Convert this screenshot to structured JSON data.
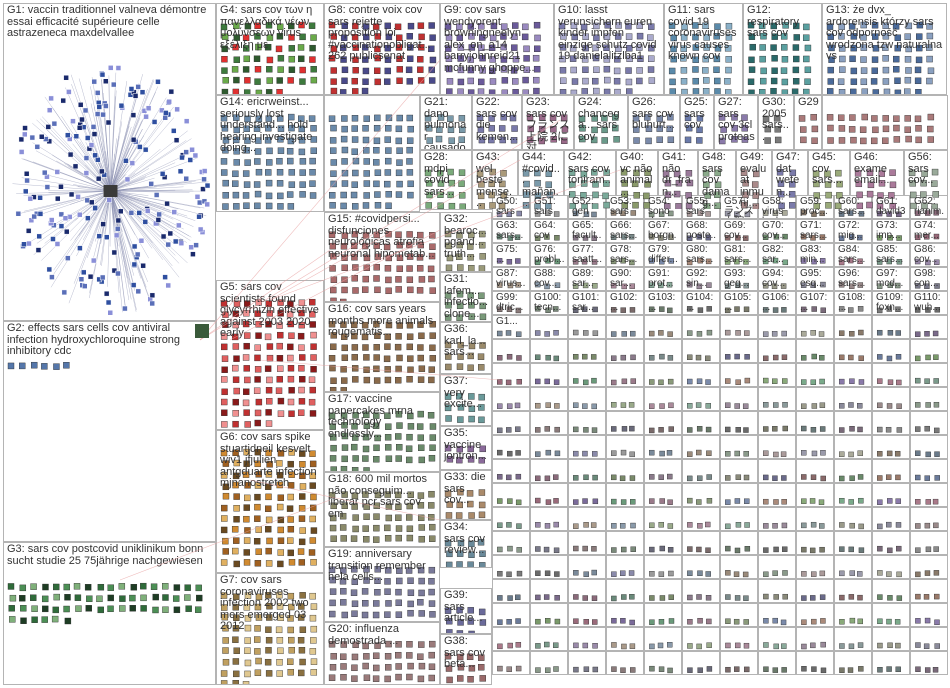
{
  "graph": {
    "background": "#ffffff",
    "edge_color": "#e8a0a0",
    "node_border": "#1a2a6c",
    "groups": [
      {
        "id": "G1",
        "label": "G1: vaccin traditionnel valneva démontre essai efficacité supérieure celle astrazeneca maxdelvallee",
        "palette": [
          "#1a2a6c",
          "#2f4fa0",
          "#5a6fb8",
          "#8a8fd8"
        ]
      },
      {
        "id": "G2",
        "label": "G2: effects sars cells cov antiviral infection hydroxychloroquine strong inhibitory cdc",
        "palette": [
          "#5577aa"
        ]
      },
      {
        "id": "G3",
        "label": "G3: sars cov postcovid uniklinikum bonn sucht studie 25 75jährige nachgewiesen",
        "palette": [
          "#2f6b3a",
          "#4c8f55",
          "#7fb07a",
          "#1e3d24"
        ]
      },
      {
        "id": "G4",
        "label": "G4: sars cov των η πανελλαδικά νέων μολύνσεων virus εξέλιξη με",
        "palette": [
          "#3d7a3d",
          "#6aaa4a",
          "#2e5a2e",
          "#e03030"
        ]
      },
      {
        "id": "G5",
        "label": "G5: sars cov scientists found glycyrrhizin effective against 2003 2020 early",
        "palette": [
          "#c03030",
          "#e06060",
          "#8a1a1a",
          "#f09090"
        ]
      },
      {
        "id": "G6",
        "label": "G6: cov sars spike stuartjdneil kesvelt wiv1 jfjulien antgduarte infection mjnanostretch",
        "palette": [
          "#d08a30",
          "#a06020",
          "#e0b060",
          "#6a4a20"
        ]
      },
      {
        "id": "G7",
        "label": "G7: cov sars coronaviruses infection 2002 two mers emerged 03 2012",
        "palette": [
          "#c0a060",
          "#8a7040",
          "#e0c890"
        ]
      },
      {
        "id": "G8",
        "label": "G8: contre voix cov sars rejette proposition loi #vaccinationobligat... 262 publicsenat",
        "palette": [
          "#c03030",
          "#4a4a8a"
        ]
      },
      {
        "id": "G9",
        "label": "G9: cov sars wendyorent browningneelyn alex_on_a14 barryjohnreid21 mcfunny ghoppe...",
        "palette": [
          "#6a5a9a",
          "#9a8ac0"
        ]
      },
      {
        "id": "G10",
        "label": "G10: lasst verunsichern euren kinder impfen einzige schutz covid 19 danielalitzlba1",
        "palette": [
          "#7a7aaa",
          "#aaaacc"
        ]
      },
      {
        "id": "G11",
        "label": "G11: sars covid 19 coronaviruses virus causes known cov",
        "palette": [
          "#5a8aaa",
          "#8ab0c8"
        ]
      },
      {
        "id": "G12",
        "label": "G12: respiratory sars cov",
        "palette": [
          "#2a6a6a",
          "#5aa0a0"
        ]
      },
      {
        "id": "G13",
        "label": "G13: że dvx_ ardorensis którzy sars cov odporność wrodzona tzw naturalna vs",
        "palette": [
          "#4a6a9a",
          "#8aa0c0"
        ]
      },
      {
        "id": "G14",
        "label": "G14: ericrweinst... seriously lost understand... hold hearing investigate doing...",
        "palette": [
          "#6a8aaa"
        ]
      },
      {
        "id": "G15",
        "label": "G15: #covidpersi... disfunciones neurológicas atrofia neuronal hipometab...",
        "palette": [
          "#aa6a6a"
        ]
      },
      {
        "id": "G16",
        "label": "G16: cov sars years months more animals rougematis...",
        "palette": [
          "#8a6a4a"
        ]
      },
      {
        "id": "G17",
        "label": "G17: vaccine papercakes mrna technology endlessly...",
        "palette": [
          "#6a8a6a"
        ]
      },
      {
        "id": "G18",
        "label": "G18: 600 mil mortos não conseguim... liberar pcr sars cov em",
        "palette": [
          "#8a8a6a"
        ]
      },
      {
        "id": "G19",
        "label": "G19: anniversary transition remember hela cells...",
        "palette": [
          "#7a7a9a"
        ]
      },
      {
        "id": "G20",
        "label": "G20: influenza demostrada ...",
        "palette": [
          "#9a7a7a"
        ]
      },
      {
        "id": "G21",
        "label": "G21: dano pulmonar causado...",
        "palette": [
          "#7a9aaa"
        ]
      },
      {
        "id": "G22",
        "label": "G22: sars cov die kemen...",
        "palette": [
          "#7a7aaa"
        ]
      },
      {
        "id": "G23",
        "label": "G23: sars cov フランス 上院 2に対...",
        "palette": [
          "#9a6a8a"
        ]
      },
      {
        "id": "G24",
        "label": "G24: chancega... sars cov",
        "palette": [
          "#6a9a8a"
        ]
      },
      {
        "id": "G25",
        "label": "G25: sars cov",
        "palette": [
          "#6a7aaa"
        ]
      },
      {
        "id": "G26",
        "label": "G26: sars cov bluhurt...",
        "palette": [
          "#7a8aaa"
        ]
      },
      {
        "id": "G27",
        "label": "G27: sars cov 3cl proteas...",
        "palette": [
          "#8a7aaa"
        ]
      },
      {
        "id": "G28",
        "label": "G28: mdpi covid sars...",
        "palette": [
          "#7aaa7a"
        ]
      },
      {
        "id": "G29",
        "label": "G29",
        "palette": [
          "#aa7a7a"
        ]
      },
      {
        "id": "G30",
        "label": "G30: 2005 sars...",
        "palette": [
          "#7a7a7a"
        ]
      },
      {
        "id": "G31",
        "label": "G31: lafem... infectio... clone...",
        "palette": [
          "#7a9a7a"
        ]
      },
      {
        "id": "G32",
        "label": "G32: bearoc... pgand... truth...",
        "palette": [
          "#9a9a7a"
        ]
      },
      {
        "id": "G33",
        "label": "G33: die sars cov...",
        "palette": [
          "#aa8a6a"
        ]
      },
      {
        "id": "G34",
        "label": "G34: sars cov review...",
        "palette": [
          "#6a8a9a"
        ]
      },
      {
        "id": "G35",
        "label": "G35: vaccine jontron...",
        "palette": [
          "#8a6a9a"
        ]
      },
      {
        "id": "G36",
        "label": "G36: karl_la... sars...",
        "palette": [
          "#9a8a6a"
        ]
      },
      {
        "id": "G37",
        "label": "G37: very excite...",
        "palette": [
          "#6a9a9a"
        ]
      },
      {
        "id": "G38",
        "label": "G38: sars cov beta...",
        "palette": [
          "#9a6a6a"
        ]
      },
      {
        "id": "G39",
        "label": "G39: sars article...",
        "palette": [
          "#6a6a9a"
        ]
      },
      {
        "id": "G40",
        "label": "G40: vc não animal...",
        "palette": [
          "#8a9a6a"
        ]
      },
      {
        "id": "G41",
        "label": "G41: não dr_fran...",
        "palette": [
          "#9a7a9a"
        ]
      },
      {
        "id": "G42",
        "label": "G42: sars cov toniram...",
        "palette": [
          "#7aaa9a"
        ]
      },
      {
        "id": "G43",
        "label": "G43: wel beste mense...",
        "palette": [
          "#aa9a7a"
        ]
      },
      {
        "id": "G44",
        "label": "G44: #covid... mañan...",
        "palette": [
          "#7a9aaa"
        ]
      },
      {
        "id": "G45",
        "label": "G45: cov sars...",
        "palette": [
          "#9aaa7a"
        ]
      },
      {
        "id": "G46",
        "label": "G46: exame email...",
        "palette": [
          "#aa7a9a"
        ]
      },
      {
        "id": "G47",
        "label": "G47: dat weten...",
        "palette": [
          "#7a7aaa"
        ]
      },
      {
        "id": "G48",
        "label": "G48: sars cov damag...",
        "palette": [
          "#8aaa8a"
        ]
      },
      {
        "id": "G49",
        "label": "G49: evaluat inmuni...",
        "palette": [
          "#aa8a8a"
        ]
      },
      {
        "id": "G50",
        "label": "G50: sars cov...",
        "palette": [
          "#8a8aaa"
        ]
      },
      {
        "id": "G51",
        "label": "G51: sars cov...",
        "palette": [
          "#9a9a9a"
        ]
      },
      {
        "id": "G52",
        "label": "G52: gen scien...",
        "palette": [
          "#7a8a9a"
        ]
      },
      {
        "id": "G53",
        "label": "G53: sars cov...",
        "palette": [
          "#9a8a7a"
        ]
      },
      {
        "id": "G54",
        "label": "G54: sono due...",
        "palette": [
          "#8a9a8a"
        ]
      },
      {
        "id": "G55",
        "label": "G55: sars cov...",
        "palette": [
          "#aa9a9a"
        ]
      },
      {
        "id": "G56",
        "label": "G56: sars cov...",
        "palette": [
          "#9aaa9a"
        ]
      },
      {
        "id": "G57",
        "label": "G57: ランス 上院...",
        "palette": [
          "#9a9aaa"
        ]
      },
      {
        "id": "G58",
        "label": "G58: virus kod...",
        "palette": [
          "#aaaa9a"
        ]
      },
      {
        "id": "G59",
        "label": "G59: proc...",
        "palette": [
          "#8a7a6a"
        ]
      },
      {
        "id": "G60",
        "label": "G60: sars...",
        "palette": [
          "#6a7a8a"
        ]
      },
      {
        "id": "G61",
        "label": "G61: david3...",
        "palette": [
          "#7a6a8a"
        ]
      },
      {
        "id": "G62",
        "label": "G62: rianim...",
        "palette": [
          "#8a6a7a"
        ]
      },
      {
        "id": "G63",
        "label": "G63: sars...",
        "palette": [
          "#6a8a7a"
        ]
      },
      {
        "id": "G64",
        "label": "G64: cov sars...",
        "palette": [
          "#7a8a6a"
        ]
      },
      {
        "id": "G65",
        "label": "G65: facult...",
        "palette": [
          "#8a7a8a"
        ]
      },
      {
        "id": "G66",
        "label": "G66: sars...",
        "palette": [
          "#7a8a8a"
        ]
      },
      {
        "id": "G67",
        "label": "G67: borgn...",
        "palette": [
          "#8a8a7a"
        ]
      },
      {
        "id": "G68",
        "label": "G68: poste...",
        "palette": [
          "#6a6a8a"
        ]
      },
      {
        "id": "G69",
        "label": "G69: cov...",
        "palette": [
          "#8a6a6a"
        ]
      },
      {
        "id": "G70",
        "label": "G70: cov...",
        "palette": [
          "#6a8a6a"
        ]
      },
      {
        "id": "G71",
        "label": "G71: sars...",
        "palette": [
          "#9a7a6a"
        ]
      },
      {
        "id": "G72",
        "label": "G72: mig...",
        "palette": [
          "#6a7a9a"
        ]
      },
      {
        "id": "G73",
        "label": "G73: imp...",
        "palette": [
          "#7a9a6a"
        ]
      },
      {
        "id": "G74",
        "label": "G74: mer...",
        "palette": [
          "#9a6a7a"
        ]
      },
      {
        "id": "G75",
        "label": "G75: ...",
        "palette": [
          "#7a6a9a"
        ]
      },
      {
        "id": "G76",
        "label": "G76: probl...",
        "palette": [
          "#6a9a7a"
        ]
      },
      {
        "id": "G77",
        "label": "G77: saatt...",
        "palette": [
          "#9a7a8a"
        ]
      },
      {
        "id": "G78",
        "label": "G78: sars...",
        "palette": [
          "#8a9a7a"
        ]
      },
      {
        "id": "G79",
        "label": "G79: differ...",
        "palette": [
          "#7a8aaa"
        ]
      },
      {
        "id": "G80",
        "label": "G80: sars...",
        "palette": [
          "#aa8a7a"
        ]
      },
      {
        "id": "G81",
        "label": "G81: sars...",
        "palette": [
          "#8aaa7a"
        ]
      },
      {
        "id": "G82",
        "label": "G82: sar...",
        "palette": [
          "#7aaa8a"
        ]
      },
      {
        "id": "G83",
        "label": "G83: min...",
        "palette": [
          "#8a7aaa"
        ]
      },
      {
        "id": "G84",
        "label": "G84: sars...",
        "palette": [
          "#aa7a8a"
        ]
      },
      {
        "id": "G85",
        "label": "G85: sars...",
        "palette": [
          "#7a9a8a"
        ]
      },
      {
        "id": "G86",
        "label": "G86: cov...",
        "palette": [
          "#9a8aaa"
        ]
      },
      {
        "id": "G87",
        "label": "G87: virus...",
        "palette": [
          "#aa9a8a"
        ]
      },
      {
        "id": "G88",
        "label": "G88: cov...",
        "palette": [
          "#8a9aaa"
        ]
      },
      {
        "id": "G89",
        "label": "G89: sar...",
        "palette": [
          "#9aaa8a"
        ]
      },
      {
        "id": "G90",
        "label": "G90: sar...",
        "palette": [
          "#aa8a9a"
        ]
      },
      {
        "id": "G91",
        "label": "G91: prot...",
        "palette": [
          "#8aaa9a"
        ]
      },
      {
        "id": "G92",
        "label": "G92: sin...",
        "palette": [
          "#9a8a9a"
        ]
      },
      {
        "id": "G93",
        "label": "G93: geg...",
        "palette": [
          "#8a9a9a"
        ]
      },
      {
        "id": "G94",
        "label": "G94: cov...",
        "palette": [
          "#9a9a8a"
        ]
      },
      {
        "id": "G95",
        "label": "G95: esq...",
        "palette": [
          "#8a8a9a"
        ]
      },
      {
        "id": "G96",
        "label": "G96: sars...",
        "palette": [
          "#9a8a8a"
        ]
      },
      {
        "id": "G97",
        "label": "G97: mcd...",
        "palette": [
          "#8a9a8a"
        ]
      },
      {
        "id": "G98",
        "label": "G98: con...",
        "palette": [
          "#7a7a8a"
        ]
      },
      {
        "id": "G99",
        "label": "G99: dtric...",
        "palette": [
          "#8a7a7a"
        ]
      },
      {
        "id": "G100",
        "label": "G100: tecn...",
        "palette": [
          "#7a8a7a"
        ]
      },
      {
        "id": "G101",
        "label": "G101: sar...",
        "palette": [
          "#6a6a7a"
        ]
      },
      {
        "id": "G102",
        "label": "G102: ...",
        "palette": [
          "#7a6a6a"
        ]
      },
      {
        "id": "G103",
        "label": "G103: ...",
        "palette": [
          "#6a7a6a"
        ]
      },
      {
        "id": "G104",
        "label": "G104: ...",
        "palette": [
          "#6a6a6a"
        ]
      },
      {
        "id": "G105",
        "label": "G105: ...",
        "palette": [
          "#7a7a6a"
        ]
      },
      {
        "id": "G106",
        "label": "G106: ...",
        "palette": [
          "#6a7a7a"
        ]
      },
      {
        "id": "G107",
        "label": "G107: ...",
        "palette": [
          "#7a6a7a"
        ]
      },
      {
        "id": "G108",
        "label": "G108: ...",
        "palette": [
          "#8a8a8a"
        ]
      },
      {
        "id": "G109",
        "label": "G109: foxn...",
        "palette": [
          "#7a7a7a"
        ]
      },
      {
        "id": "G110",
        "label": "G110: wuh...",
        "palette": [
          "#6a6a6a"
        ]
      },
      {
        "id": "G111",
        "label": "G1...",
        "palette": [
          "#7a8a9a"
        ]
      }
    ]
  }
}
